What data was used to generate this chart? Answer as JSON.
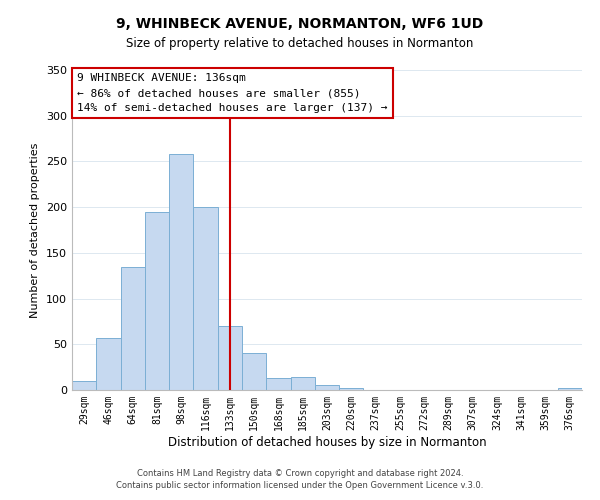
{
  "title": "9, WHINBECK AVENUE, NORMANTON, WF6 1UD",
  "subtitle": "Size of property relative to detached houses in Normanton",
  "xlabel": "Distribution of detached houses by size in Normanton",
  "ylabel": "Number of detached properties",
  "bar_labels": [
    "29sqm",
    "46sqm",
    "64sqm",
    "81sqm",
    "98sqm",
    "116sqm",
    "133sqm",
    "150sqm",
    "168sqm",
    "185sqm",
    "203sqm",
    "220sqm",
    "237sqm",
    "255sqm",
    "272sqm",
    "289sqm",
    "307sqm",
    "324sqm",
    "341sqm",
    "359sqm",
    "376sqm"
  ],
  "bar_heights": [
    10,
    57,
    135,
    195,
    258,
    200,
    70,
    41,
    13,
    14,
    6,
    2,
    0,
    0,
    0,
    0,
    0,
    0,
    0,
    0,
    2
  ],
  "bar_color": "#c6d9f0",
  "bar_edge_color": "#7bafd4",
  "vline_color": "#cc0000",
  "ylim": [
    0,
    350
  ],
  "yticks": [
    0,
    50,
    100,
    150,
    200,
    250,
    300,
    350
  ],
  "annotation_title": "9 WHINBECK AVENUE: 136sqm",
  "annotation_line1": "← 86% of detached houses are smaller (855)",
  "annotation_line2": "14% of semi-detached houses are larger (137) →",
  "annotation_box_color": "#ffffff",
  "annotation_box_edge": "#cc0000",
  "footer_line1": "Contains HM Land Registry data © Crown copyright and database right 2024.",
  "footer_line2": "Contains public sector information licensed under the Open Government Licence v.3.0.",
  "background_color": "#ffffff",
  "grid_color": "#dde8f0"
}
